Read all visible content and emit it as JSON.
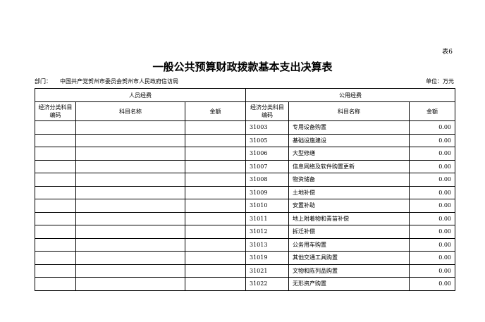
{
  "table_no": "表6",
  "title": "一般公共预算财政拨款基本支出决算表",
  "dept_label": "部门：",
  "dept_name": "中国共产党贺州市委员会贺州市人民政府信访局",
  "unit": "单位：万元",
  "groups": {
    "personnel": "人员经费",
    "public": "公用经费"
  },
  "columns": {
    "code": "经济分类科目编码",
    "name": "科目名称",
    "amount": "金额"
  },
  "rows": [
    {
      "code": "31003",
      "name": "专用设备购置",
      "amount": "0.00"
    },
    {
      "code": "31005",
      "name": "基础设施建设",
      "amount": "0.00"
    },
    {
      "code": "31006",
      "name": "大型修缮",
      "amount": "0.00"
    },
    {
      "code": "31007",
      "name": "信息网络及软件购置更新",
      "amount": "0.00"
    },
    {
      "code": "31008",
      "name": "物资储备",
      "amount": "0.00"
    },
    {
      "code": "31009",
      "name": "土地补偿",
      "amount": "0.00"
    },
    {
      "code": "31010",
      "name": "安置补助",
      "amount": "0.00"
    },
    {
      "code": "31011",
      "name": "地上附着物和青苗补偿",
      "amount": "0.00"
    },
    {
      "code": "31012",
      "name": "拆迁补偿",
      "amount": "0.00"
    },
    {
      "code": "31013",
      "name": "公务用车购置",
      "amount": "0.00"
    },
    {
      "code": "31019",
      "name": "其他交通工具购置",
      "amount": "0.00"
    },
    {
      "code": "31021",
      "name": "文物和陈列品购置",
      "amount": "0.00"
    },
    {
      "code": "31022",
      "name": "无形资产购置",
      "amount": "0.00"
    }
  ]
}
